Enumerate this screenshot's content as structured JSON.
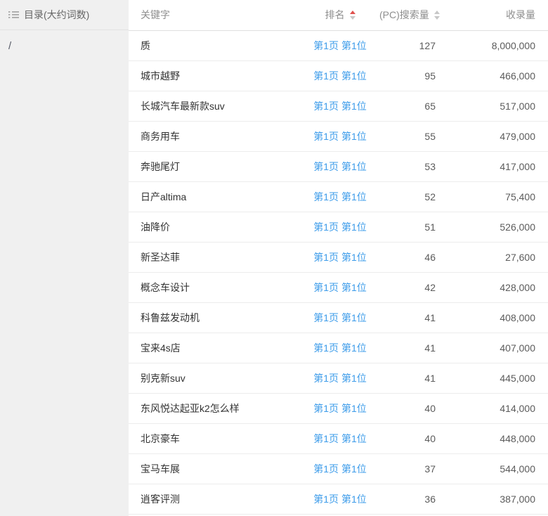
{
  "colors": {
    "link": "#3d9cea",
    "sort_active": "#e0504d",
    "sidebar_bg": "#f0f0f0"
  },
  "sidebar": {
    "title": "目录(大约词数)",
    "icon": "list-icon",
    "items": [
      {
        "label": "/"
      }
    ]
  },
  "table": {
    "columns": [
      {
        "label": "关键字",
        "align": "al",
        "extra_class": "",
        "sort": null
      },
      {
        "label": "排名",
        "align": "ac",
        "extra_class": "",
        "sort": "asc"
      },
      {
        "label": "(PC)搜索量",
        "align": "ar",
        "extra_class": "pc-col",
        "sort": "none"
      },
      {
        "label": "收录量",
        "align": "ar",
        "extra_class": "idx-col",
        "sort": null
      }
    ],
    "rows": [
      {
        "keyword": "质",
        "rank": "第1页 第1位",
        "pc_search_volume": "127",
        "index_count": "8,000,000"
      },
      {
        "keyword": "城市越野",
        "rank": "第1页 第1位",
        "pc_search_volume": "95",
        "index_count": "466,000"
      },
      {
        "keyword": "长城汽车最新款suv",
        "rank": "第1页 第1位",
        "pc_search_volume": "65",
        "index_count": "517,000"
      },
      {
        "keyword": "商务用车",
        "rank": "第1页 第1位",
        "pc_search_volume": "55",
        "index_count": "479,000"
      },
      {
        "keyword": "奔驰尾灯",
        "rank": "第1页 第1位",
        "pc_search_volume": "53",
        "index_count": "417,000"
      },
      {
        "keyword": "日产altima",
        "rank": "第1页 第1位",
        "pc_search_volume": "52",
        "index_count": "75,400"
      },
      {
        "keyword": "油降价",
        "rank": "第1页 第1位",
        "pc_search_volume": "51",
        "index_count": "526,000"
      },
      {
        "keyword": "新圣达菲",
        "rank": "第1页 第1位",
        "pc_search_volume": "46",
        "index_count": "27,600"
      },
      {
        "keyword": "概念车设计",
        "rank": "第1页 第1位",
        "pc_search_volume": "42",
        "index_count": "428,000"
      },
      {
        "keyword": "科鲁兹发动机",
        "rank": "第1页 第1位",
        "pc_search_volume": "41",
        "index_count": "408,000"
      },
      {
        "keyword": "宝来4s店",
        "rank": "第1页 第1位",
        "pc_search_volume": "41",
        "index_count": "407,000"
      },
      {
        "keyword": "别克新suv",
        "rank": "第1页 第1位",
        "pc_search_volume": "41",
        "index_count": "445,000"
      },
      {
        "keyword": "东风悦达起亚k2怎么样",
        "rank": "第1页 第1位",
        "pc_search_volume": "40",
        "index_count": "414,000"
      },
      {
        "keyword": "北京豪车",
        "rank": "第1页 第1位",
        "pc_search_volume": "40",
        "index_count": "448,000"
      },
      {
        "keyword": "宝马车展",
        "rank": "第1页 第1位",
        "pc_search_volume": "37",
        "index_count": "544,000"
      },
      {
        "keyword": "逍客评测",
        "rank": "第1页 第1位",
        "pc_search_volume": "36",
        "index_count": "387,000"
      }
    ]
  }
}
